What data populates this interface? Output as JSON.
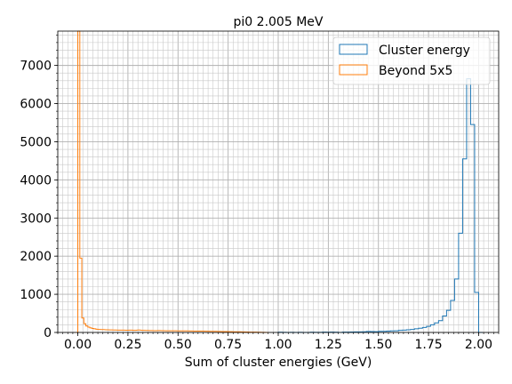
{
  "chart_data": {
    "type": "histogram",
    "title": "pi0 2.005 MeV",
    "xlabel": "Sum of cluster energies (GeV)",
    "ylabel": "",
    "xlim": [
      -0.1,
      2.1
    ],
    "ylim": [
      0,
      7900
    ],
    "xticks": [
      0.0,
      0.25,
      0.5,
      0.75,
      1.0,
      1.25,
      1.5,
      1.75,
      2.0
    ],
    "xtick_labels": [
      "0.00",
      "0.25",
      "0.50",
      "0.75",
      "1.00",
      "1.25",
      "1.50",
      "1.75",
      "2.00"
    ],
    "yticks": [
      0,
      1000,
      2000,
      3000,
      4000,
      5000,
      6000,
      7000
    ],
    "ytick_labels": [
      "0",
      "1000",
      "2000",
      "3000",
      "4000",
      "5000",
      "6000",
      "7000"
    ],
    "grid": "major and minor",
    "legend_position": "top-right",
    "bin_width": 0.02,
    "series": [
      {
        "name": "Cluster energy",
        "color": "#1f77b4",
        "bins": [
          [
            1.0,
            5
          ],
          [
            1.02,
            3
          ],
          [
            1.04,
            0
          ],
          [
            1.06,
            4
          ],
          [
            1.08,
            0
          ],
          [
            1.1,
            3
          ],
          [
            1.12,
            0
          ],
          [
            1.14,
            0
          ],
          [
            1.16,
            5
          ],
          [
            1.18,
            4
          ],
          [
            1.2,
            3
          ],
          [
            1.22,
            8
          ],
          [
            1.24,
            6
          ],
          [
            1.26,
            10
          ],
          [
            1.28,
            5
          ],
          [
            1.3,
            0
          ],
          [
            1.32,
            10
          ],
          [
            1.34,
            8
          ],
          [
            1.36,
            12
          ],
          [
            1.38,
            15
          ],
          [
            1.4,
            14
          ],
          [
            1.42,
            18
          ],
          [
            1.44,
            25
          ],
          [
            1.46,
            22
          ],
          [
            1.48,
            20
          ],
          [
            1.5,
            30
          ],
          [
            1.52,
            28
          ],
          [
            1.54,
            35
          ],
          [
            1.56,
            40
          ],
          [
            1.58,
            45
          ],
          [
            1.6,
            55
          ],
          [
            1.62,
            60
          ],
          [
            1.64,
            70
          ],
          [
            1.66,
            80
          ],
          [
            1.68,
            95
          ],
          [
            1.7,
            110
          ],
          [
            1.72,
            130
          ],
          [
            1.74,
            160
          ],
          [
            1.76,
            200
          ],
          [
            1.78,
            250
          ],
          [
            1.8,
            310
          ],
          [
            1.82,
            430
          ],
          [
            1.84,
            580
          ],
          [
            1.86,
            840
          ],
          [
            1.88,
            1400
          ],
          [
            1.9,
            2600
          ],
          [
            1.92,
            4550
          ],
          [
            1.94,
            6650
          ],
          [
            1.96,
            5450
          ],
          [
            1.98,
            1050
          ],
          [
            2.0,
            0
          ]
        ]
      },
      {
        "name": "Beyond 5x5",
        "color": "#ff7f0e",
        "bins": [
          [
            -0.01,
            0
          ],
          [
            0.0,
            7900
          ],
          [
            0.01,
            1950
          ],
          [
            0.02,
            380
          ],
          [
            0.03,
            230
          ],
          [
            0.04,
            170
          ],
          [
            0.05,
            140
          ],
          [
            0.06,
            120
          ],
          [
            0.07,
            105
          ],
          [
            0.08,
            95
          ],
          [
            0.09,
            85
          ],
          [
            0.1,
            80
          ],
          [
            0.12,
            75
          ],
          [
            0.14,
            70
          ],
          [
            0.16,
            68
          ],
          [
            0.18,
            65
          ],
          [
            0.2,
            62
          ],
          [
            0.22,
            60
          ],
          [
            0.24,
            58
          ],
          [
            0.26,
            60
          ],
          [
            0.28,
            55
          ],
          [
            0.3,
            65
          ],
          [
            0.32,
            55
          ],
          [
            0.34,
            52
          ],
          [
            0.36,
            50
          ],
          [
            0.38,
            48
          ],
          [
            0.4,
            50
          ],
          [
            0.42,
            47
          ],
          [
            0.44,
            45
          ],
          [
            0.46,
            44
          ],
          [
            0.48,
            45
          ],
          [
            0.5,
            42
          ],
          [
            0.52,
            40
          ],
          [
            0.54,
            42
          ],
          [
            0.56,
            38
          ],
          [
            0.58,
            36
          ],
          [
            0.6,
            35
          ],
          [
            0.62,
            34
          ],
          [
            0.64,
            32
          ],
          [
            0.66,
            30
          ],
          [
            0.68,
            28
          ],
          [
            0.7,
            26
          ],
          [
            0.72,
            24
          ],
          [
            0.74,
            22
          ],
          [
            0.76,
            20
          ],
          [
            0.78,
            18
          ],
          [
            0.8,
            16
          ],
          [
            0.82,
            14
          ],
          [
            0.84,
            12
          ],
          [
            0.86,
            10
          ],
          [
            0.88,
            8
          ],
          [
            0.9,
            6
          ],
          [
            0.92,
            4
          ],
          [
            0.94,
            0
          ]
        ]
      }
    ]
  }
}
